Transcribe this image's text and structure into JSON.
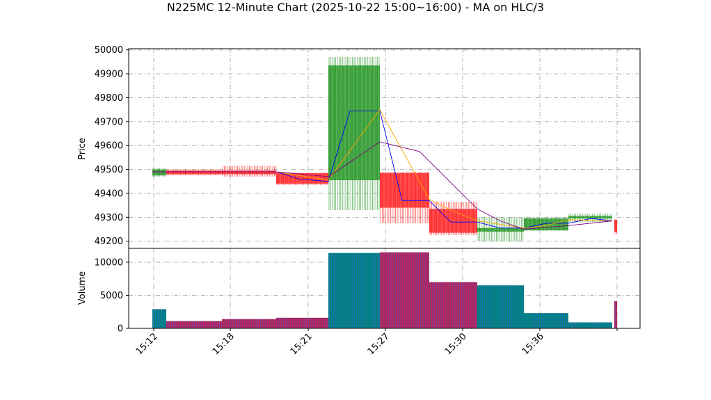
{
  "chart_data": {
    "type": "candlestick",
    "title": "N225MC 12-Minute Chart (2025-10-22 15:00~16:00) - MA on HLC/3",
    "x_tick_labels": [
      "15:12",
      "15:18",
      "15:21",
      "15:27",
      "15:30",
      "15:36",
      ""
    ],
    "price_panel": {
      "ylabel": "Price",
      "ylim": [
        49170,
        50005
      ],
      "yticks": [
        49200,
        49300,
        49400,
        49500,
        49600,
        49700,
        49800,
        49900,
        50000
      ],
      "grid": true
    },
    "volume_panel": {
      "ylabel": "Volume",
      "ylim": [
        0,
        12100
      ],
      "yticks": [
        0,
        5000,
        10000
      ],
      "grid": true
    },
    "candles": [
      {
        "open": 49475,
        "high": 49505,
        "low": 49470,
        "close": 49500,
        "volume": 2900,
        "up": true
      },
      {
        "open": 49495,
        "high": 49500,
        "low": 49475,
        "close": 49480,
        "volume": 1100,
        "up": false
      },
      {
        "open": 49495,
        "high": 49515,
        "low": 49470,
        "close": 49480,
        "volume": 1400,
        "up": false
      },
      {
        "open": 49485,
        "high": 49485,
        "low": 49435,
        "close": 49440,
        "volume": 1600,
        "up": false
      },
      {
        "open": 49455,
        "high": 49970,
        "low": 49330,
        "close": 49935,
        "volume": 11400,
        "up": true
      },
      {
        "open": 49485,
        "high": 49490,
        "low": 49275,
        "close": 49340,
        "volume": 11500,
        "up": false
      },
      {
        "open": 49335,
        "high": 49365,
        "low": 49225,
        "close": 49235,
        "volume": 7000,
        "up": false
      },
      {
        "open": 49240,
        "high": 49300,
        "low": 49200,
        "close": 49255,
        "volume": 6500,
        "up": true
      },
      {
        "open": 49245,
        "high": 49300,
        "low": 49245,
        "close": 49295,
        "volume": 2300,
        "up": true
      },
      {
        "open": 49295,
        "high": 49315,
        "low": 49280,
        "close": 49305,
        "volume": 900,
        "up": true
      },
      {
        "open": 49290,
        "high": 49290,
        "low": 49230,
        "close": 49240,
        "volume": 4100,
        "up": false
      }
    ],
    "ma_series": [
      {
        "color": "#0000ff",
        "values": [
          49490,
          49490,
          49490,
          49490,
          49460,
          49450,
          49745,
          49745,
          49370,
          49370,
          49280,
          49280,
          49255,
          49255,
          49275,
          49275,
          49295,
          49295,
          49285
        ]
      },
      {
        "color": "#ffa500",
        "values": [
          49490,
          49490,
          49490,
          49455,
          49600,
          49750,
          49375,
          49330,
          49285,
          49255,
          49265,
          49290,
          49285
        ]
      },
      {
        "color": "#800080",
        "values": [
          49490,
          49490,
          49490,
          49470,
          49615,
          49575,
          49335,
          49285,
          49250,
          49265,
          49285
        ]
      }
    ],
    "colors": {
      "up": "#2e9a2e",
      "down": "#ff2a2a",
      "vol_up": "#008080",
      "vol_down": "#b4245a",
      "vol_stripe": "#4169e1"
    }
  }
}
